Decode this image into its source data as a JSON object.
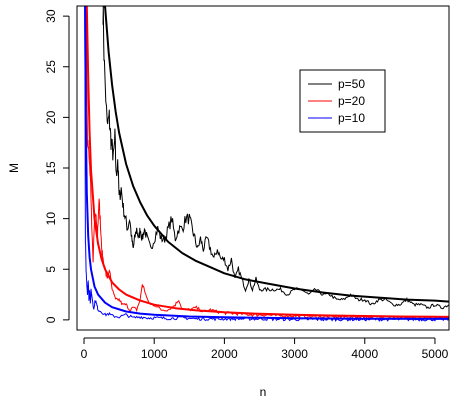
{
  "chart_data": {
    "type": "line",
    "title": "",
    "xlabel": "n",
    "ylabel": "M",
    "xlim": [
      -100,
      5200
    ],
    "ylim": [
      -1,
      31
    ],
    "x_ticks": [
      0,
      1000,
      2000,
      3000,
      4000,
      5000
    ],
    "y_ticks": [
      0,
      5,
      10,
      15,
      20,
      25,
      30
    ],
    "x_tick_labels": [
      "0",
      "1000",
      "2000",
      "3000",
      "4000",
      "5000"
    ],
    "y_tick_labels": [
      "0",
      "5",
      "10",
      "15",
      "20",
      "25",
      "30"
    ],
    "grid": false,
    "legend_position": "top-right",
    "series": [
      {
        "name": "p=50",
        "color": "#000000",
        "style": "noisy",
        "x": [
          270,
          290,
          330,
          360,
          380,
          400,
          420,
          440,
          460,
          480,
          500,
          530,
          560,
          590,
          620,
          650,
          680,
          700,
          720,
          750,
          780,
          800,
          830,
          860,
          900,
          950,
          1000,
          1050,
          1100,
          1150,
          1200,
          1250,
          1300,
          1350,
          1400,
          1450,
          1500,
          1540,
          1580,
          1620,
          1660,
          1700,
          1750,
          1800,
          1850,
          1900,
          1950,
          2000,
          2050,
          2100,
          2150,
          2200,
          2250,
          2300,
          2350,
          2400,
          2450,
          2500,
          2600,
          2700,
          2800,
          2900,
          3000,
          3100,
          3200,
          3300,
          3400,
          3500,
          3600,
          3700,
          3800,
          3900,
          4000,
          4100,
          4200,
          4300,
          4400,
          4500,
          4600,
          4700,
          4800,
          4900,
          5000,
          5100,
          5200
        ],
        "y": [
          31,
          25,
          19,
          20,
          18,
          17,
          16,
          18,
          14,
          16,
          12,
          13,
          11,
          10,
          9,
          10,
          8,
          7,
          8,
          9,
          8,
          9,
          8,
          9,
          8,
          7,
          8,
          9,
          8,
          8,
          9,
          10,
          8,
          9,
          9,
          10,
          10,
          9,
          8,
          7,
          8,
          7,
          8,
          7,
          6,
          7,
          6,
          6,
          5,
          6,
          4,
          5,
          4,
          3,
          4,
          3,
          4,
          3,
          3,
          3,
          3,
          2.5,
          3,
          3,
          2.5,
          3,
          2.5,
          2.5,
          2,
          2,
          2.5,
          2,
          2,
          1.5,
          2,
          2,
          1.5,
          1.5,
          2,
          1.5,
          1.5,
          1.2,
          1.5,
          1.2,
          1.5
        ],
        "curve_x": [
          270,
          300,
          350,
          400,
          450,
          500,
          600,
          700,
          800,
          900,
          1000,
          1200,
          1400,
          1600,
          1800,
          2000,
          2300,
          2600,
          3000,
          3400,
          3800,
          4200,
          4600,
          5000,
          5200
        ],
        "curve_y": [
          31,
          30.9,
          26.5,
          23.2,
          20.6,
          18.5,
          15.4,
          13.2,
          11.6,
          10.3,
          9.3,
          7.7,
          6.6,
          5.8,
          5.2,
          4.6,
          4.0,
          3.6,
          3.1,
          2.7,
          2.4,
          2.2,
          2.0,
          1.9,
          1.8
        ]
      },
      {
        "name": "p=20",
        "color": "#ff0000",
        "style": "noisy",
        "x": [
          30,
          50,
          70,
          90,
          110,
          130,
          150,
          170,
          190,
          210,
          230,
          250,
          270,
          300,
          330,
          360,
          400,
          450,
          500,
          550,
          600,
          650,
          700,
          750,
          800,
          830,
          860,
          900,
          950,
          1000,
          1100,
          1200,
          1300,
          1350,
          1400,
          1500,
          1600,
          1700,
          1800,
          1900,
          2000,
          2200,
          2400,
          2600,
          2800,
          3000,
          3300,
          3600,
          4000,
          4400,
          4800,
          5200
        ],
        "y": [
          31,
          18,
          16,
          14,
          9,
          6,
          10,
          11,
          8,
          12,
          10,
          7,
          6,
          5,
          4,
          5,
          3,
          2,
          2,
          1.5,
          1.5,
          1,
          1.2,
          1,
          2,
          3.5,
          3,
          2,
          1.5,
          1.5,
          1,
          1,
          1.5,
          2,
          1,
          1,
          1.2,
          0.8,
          1,
          0.8,
          0.7,
          0.6,
          0.5,
          0.5,
          0.4,
          0.4,
          0.3,
          0.3,
          0.3,
          0.2,
          0.2,
          0.2
        ],
        "curve_x": [
          40,
          60,
          80,
          100,
          150,
          200,
          250,
          300,
          400,
          500,
          600,
          800,
          1000,
          1300,
          1600,
          2000,
          2500,
          3000,
          3500,
          4000,
          4500,
          5000,
          5200
        ],
        "curve_y": [
          31,
          24,
          18.5,
          14.8,
          10.0,
          7.5,
          6.0,
          5.0,
          3.7,
          3.0,
          2.5,
          1.9,
          1.5,
          1.15,
          0.94,
          0.75,
          0.6,
          0.5,
          0.43,
          0.38,
          0.33,
          0.3,
          0.29
        ]
      },
      {
        "name": "p=10",
        "color": "#0000ff",
        "style": "noisy",
        "x": [
          10,
          20,
          30,
          40,
          50,
          60,
          70,
          80,
          90,
          100,
          120,
          140,
          160,
          180,
          200,
          250,
          300,
          350,
          400,
          500,
          600,
          700,
          800,
          900,
          1000,
          1200,
          1400,
          1600,
          1800,
          2000,
          2500,
          3000,
          3500,
          4000,
          4500,
          5000,
          5200
        ],
        "y": [
          31,
          8,
          5,
          3.5,
          2.5,
          4,
          2,
          3,
          1.5,
          3,
          2,
          1,
          2,
          1.5,
          1,
          0.8,
          0.5,
          0.6,
          0.4,
          0.3,
          0.5,
          0.2,
          0.3,
          0.2,
          0.2,
          0.15,
          0.2,
          0.1,
          0.1,
          0.1,
          0.1,
          0.05,
          0.05,
          0.05,
          0.05,
          0.05,
          0.05
        ],
        "curve_x": [
          15,
          25,
          40,
          60,
          80,
          100,
          150,
          200,
          300,
          400,
          600,
          800,
          1000,
          1500,
          2000,
          3000,
          4000,
          5200
        ],
        "curve_y": [
          31,
          20,
          12.5,
          8.3,
          6.2,
          5.0,
          3.3,
          2.5,
          1.7,
          1.25,
          0.83,
          0.62,
          0.5,
          0.33,
          0.25,
          0.17,
          0.12,
          0.1
        ]
      }
    ]
  }
}
